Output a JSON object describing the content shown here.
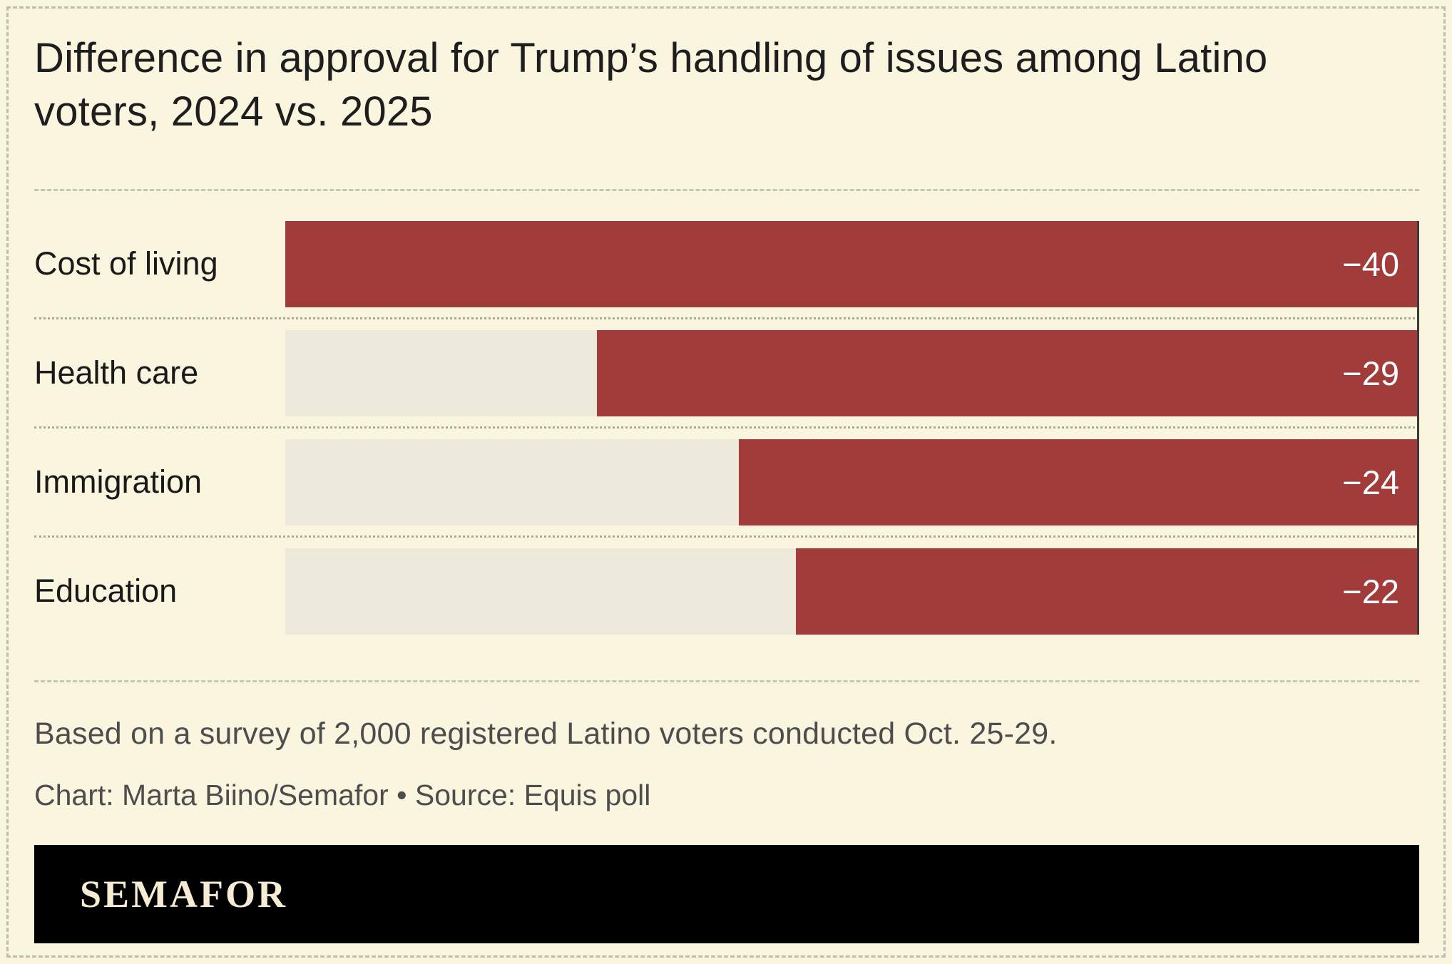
{
  "chart_data": {
    "type": "bar",
    "orientation": "horizontal",
    "title": "Difference in approval for Trump’s handling of issues among Latino voters, 2024 vs. 2025",
    "categories": [
      "Cost of living",
      "Health care",
      "Immigration",
      "Education"
    ],
    "values": [
      -40,
      -29,
      -24,
      -22
    ],
    "value_labels": [
      "−40",
      "−29",
      "−24",
      "−22"
    ],
    "xlabel": "",
    "ylabel": "",
    "xlim": [
      -40,
      0
    ],
    "grid": false,
    "legend": "none",
    "bar_color": "#A23C3A",
    "track_color": "#ECE9DB",
    "background_color": "#FAF5DF"
  },
  "notes": {
    "survey": "Based on a survey of 2,000 registered Latino voters conducted Oct. 25-29.",
    "credit": "Chart: Marta Biino/Semafor • Source: Equis poll"
  },
  "footer": {
    "brand": "SEMAFOR"
  }
}
